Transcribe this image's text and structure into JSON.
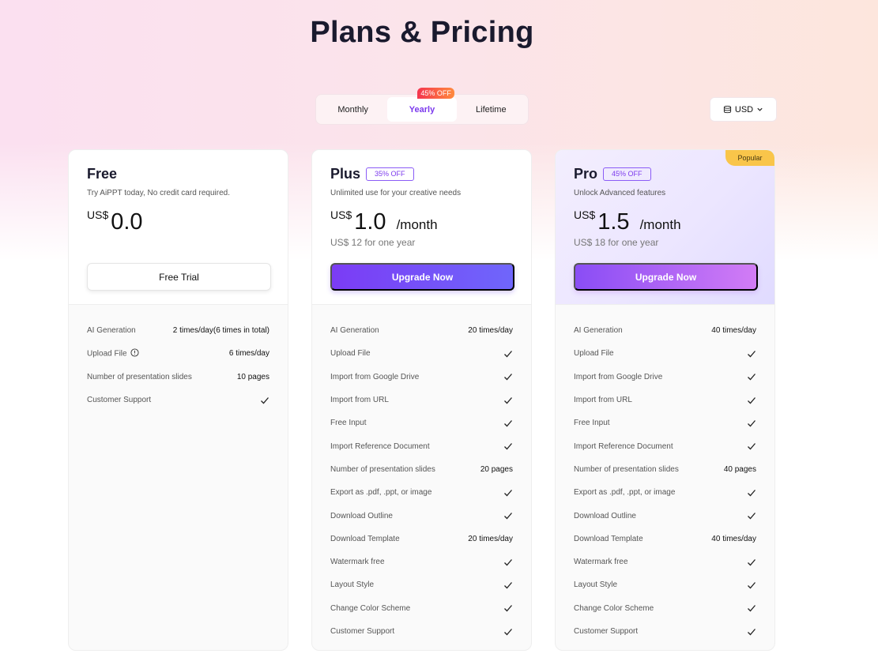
{
  "page": {
    "title": "Plans & Pricing"
  },
  "billing": {
    "options": [
      {
        "label": "Monthly",
        "active": false
      },
      {
        "label": "Yearly",
        "active": true,
        "badge": "45% OFF"
      },
      {
        "label": "Lifetime",
        "active": false
      }
    ]
  },
  "currency": {
    "label": "USD",
    "icon": "coins-icon"
  },
  "plans": [
    {
      "name": "Free",
      "badge": "",
      "description": "Try AiPPT today, No credit card required.",
      "currency": "US$",
      "price": "0.0",
      "per": "",
      "yearly": "",
      "button": "Free Trial",
      "features": [
        {
          "label": "AI Generation",
          "value": "2 times/day(6 times in total)"
        },
        {
          "label": "Upload File",
          "value": "6 times/day",
          "info": true
        },
        {
          "label": "Number of presentation slides",
          "value": "10 pages"
        },
        {
          "label": "Customer Support",
          "check": true
        }
      ]
    },
    {
      "name": "Plus",
      "badge": "35% OFF",
      "description": "Unlimited use for your creative needs",
      "currency": "US$",
      "price": "1.0",
      "per": "/month",
      "yearly": "US$ 12 for one year",
      "button": "Upgrade Now",
      "features": [
        {
          "label": "AI Generation",
          "value": "20 times/day"
        },
        {
          "label": "Upload File",
          "check": true
        },
        {
          "label": "Import from Google Drive",
          "check": true
        },
        {
          "label": "Import from URL",
          "check": true
        },
        {
          "label": "Free Input",
          "check": true
        },
        {
          "label": "Import Reference Document",
          "check": true
        },
        {
          "label": "Number of presentation slides",
          "value": "20 pages"
        },
        {
          "label": "Export as .pdf, .ppt, or image",
          "check": true
        },
        {
          "label": "Download Outline",
          "check": true
        },
        {
          "label": "Download Template",
          "value": "20 times/day"
        },
        {
          "label": "Watermark free",
          "check": true
        },
        {
          "label": "Layout Style",
          "check": true
        },
        {
          "label": "Change Color Scheme",
          "check": true
        },
        {
          "label": "Customer Support",
          "check": true
        }
      ]
    },
    {
      "name": "Pro",
      "badge": "45% OFF",
      "popular": "Popular",
      "description": "Unlock Advanced features",
      "currency": "US$",
      "price": "1.5",
      "per": "/month",
      "yearly": "US$ 18 for one year",
      "button": "Upgrade Now",
      "features": [
        {
          "label": "AI Generation",
          "value": "40 times/day"
        },
        {
          "label": "Upload File",
          "check": true
        },
        {
          "label": "Import from Google Drive",
          "check": true
        },
        {
          "label": "Import from URL",
          "check": true
        },
        {
          "label": "Free Input",
          "check": true
        },
        {
          "label": "Import Reference Document",
          "check": true
        },
        {
          "label": "Number of presentation slides",
          "value": "40 pages"
        },
        {
          "label": "Export as .pdf, .ppt, or image",
          "check": true
        },
        {
          "label": "Download Outline",
          "check": true
        },
        {
          "label": "Download Template",
          "value": "40 times/day"
        },
        {
          "label": "Watermark free",
          "check": true
        },
        {
          "label": "Layout Style",
          "check": true
        },
        {
          "label": "Change Color Scheme",
          "check": true
        },
        {
          "label": "Customer Support",
          "check": true
        }
      ]
    }
  ]
}
